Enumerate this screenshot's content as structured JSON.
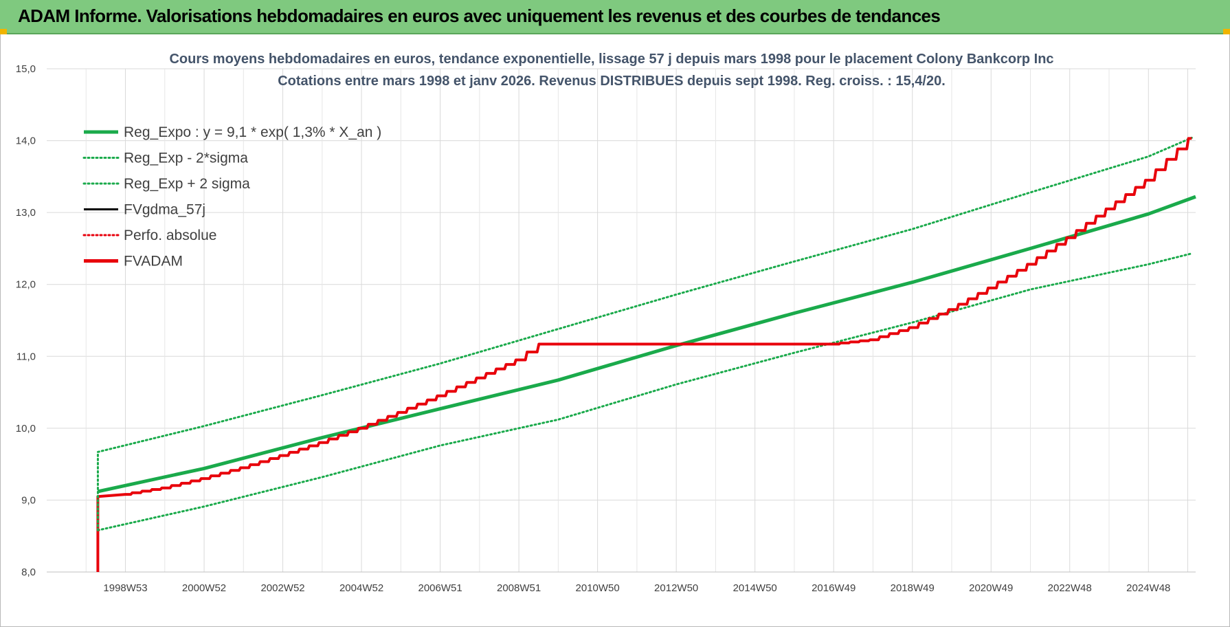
{
  "header": {
    "title": "ADAM Informe. Valorisations hebdomadaires en euros avec uniquement les revenus et des courbes de tendances"
  },
  "colors": {
    "banner": "#7fc97f",
    "reg_green": "#1aaa4b",
    "adam_red": "#e8000b",
    "black": "#000000",
    "title_text": "#44546a"
  },
  "chart_data": {
    "type": "line",
    "title": "Cours moyens hebdomadaires en euros, tendance exponentielle, lissage 57 j depuis mars 1998 pour le placement Colony Bankcorp Inc",
    "subtitle": "Cotations entre mars 1998 et janv 2026. Revenus DISTRIBUES depuis sept 1998. Reg. croiss. : 15,4/20.",
    "xlabel": "",
    "ylabel": "",
    "ylim": [
      8.0,
      15.0
    ],
    "xlim": [
      1997.0,
      2026.2
    ],
    "yticks": [
      "8,0",
      "9,0",
      "10,0",
      "11,0",
      "12,0",
      "13,0",
      "14,0",
      "15,0"
    ],
    "xticks": [
      {
        "label": "1998W53",
        "x": 1999.0
      },
      {
        "label": "2000W52",
        "x": 2001.0
      },
      {
        "label": "2002W52",
        "x": 2003.0
      },
      {
        "label": "2004W52",
        "x": 2005.0
      },
      {
        "label": "2006W51",
        "x": 2007.0
      },
      {
        "label": "2008W51",
        "x": 2009.0
      },
      {
        "label": "2010W50",
        "x": 2011.0
      },
      {
        "label": "2012W50",
        "x": 2013.0
      },
      {
        "label": "2014W50",
        "x": 2015.0
      },
      {
        "label": "2016W49",
        "x": 2017.0
      },
      {
        "label": "2018W49",
        "x": 2019.0
      },
      {
        "label": "2020W49",
        "x": 2021.0
      },
      {
        "label": "2022W48",
        "x": 2023.0
      },
      {
        "label": "2024W48",
        "x": 2025.0
      }
    ],
    "grid": true,
    "legend_position": "top-left",
    "series": [
      {
        "name": "Reg_Expo : y = 9,1 * exp( 1,3% *  X_an )",
        "color": "#1aaa4b",
        "style": "solid",
        "x": [
          1998.3,
          2001.0,
          2004.0,
          2007.0,
          2010.0,
          2013.0,
          2016.0,
          2019.0,
          2022.0,
          2025.0,
          2026.2
        ],
        "y": [
          9.12,
          9.44,
          9.87,
          10.27,
          10.67,
          11.15,
          11.6,
          12.03,
          12.5,
          12.98,
          13.22
        ]
      },
      {
        "name": "Reg_Exp - 2*sigma",
        "color": "#1aaa4b",
        "style": "dotted",
        "x": [
          1998.3,
          2001.0,
          2004.0,
          2007.0,
          2010.0,
          2013.0,
          2016.0,
          2019.0,
          2022.0,
          2025.0,
          2026.1
        ],
        "y": [
          8.58,
          8.91,
          9.32,
          9.76,
          10.12,
          10.61,
          11.05,
          11.47,
          11.93,
          12.28,
          12.43
        ]
      },
      {
        "name": "Reg_Exp + 2 sigma",
        "color": "#1aaa4b",
        "style": "dotted",
        "x": [
          1998.3,
          2001.0,
          2004.0,
          2007.0,
          2010.0,
          2013.0,
          2016.0,
          2019.0,
          2022.0,
          2025.0,
          2026.1
        ],
        "y": [
          9.67,
          10.03,
          10.46,
          10.9,
          11.38,
          11.86,
          12.32,
          12.77,
          13.28,
          13.78,
          14.04
        ]
      },
      {
        "name": "FVgdma_57j",
        "color": "#000000",
        "style": "solid",
        "x": [],
        "y": []
      },
      {
        "name": "Perfo. absolue",
        "color": "#e8000b",
        "style": "dotted",
        "x": [],
        "y": []
      },
      {
        "name": "FVADAM",
        "color": "#e8000b",
        "style": "solid",
        "x": [
          1998.3,
          1998.3,
          1999.0,
          2000.0,
          2001.0,
          2002.0,
          2003.0,
          2004.0,
          2005.0,
          2006.0,
          2007.0,
          2008.0,
          2009.0,
          2009.6,
          2013.0,
          2017.0,
          2018.0,
          2019.0,
          2020.0,
          2021.0,
          2022.0,
          2023.0,
          2024.0,
          2025.0,
          2026.1
        ],
        "y": [
          8.0,
          9.05,
          9.08,
          9.17,
          9.3,
          9.45,
          9.62,
          9.8,
          10.0,
          10.22,
          10.45,
          10.7,
          10.95,
          11.17,
          11.17,
          11.17,
          11.23,
          11.4,
          11.65,
          11.95,
          12.28,
          12.65,
          13.05,
          13.45,
          14.03
        ]
      }
    ]
  }
}
